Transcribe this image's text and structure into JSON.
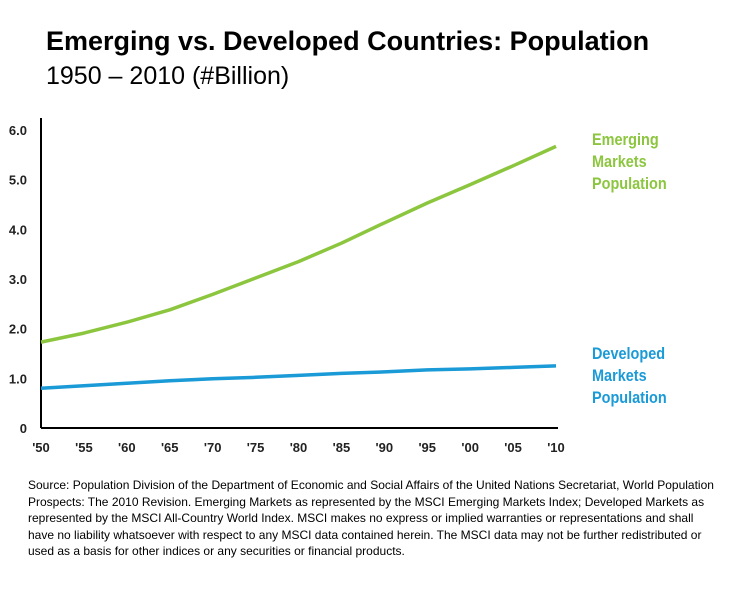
{
  "title": "Emerging vs. Developed Countries: Population",
  "subtitle": "1950 – 2010 (#Billion)",
  "source_text": "Source: Population Division of the Department of Economic and Social Affairs of the United Nations Secretariat, World Population Prospects: The 2010 Revision. Emerging Markets as represented by the MSCI Emerging Markets Index; Developed Markets as represented by the MSCI All-Country World Index. MSCI makes no express or implied warranties or representations and shall have no liability whatsoever with respect to any MSCI data contained herein. The MSCI data may not be further redistributed or used as a basis for other indices or any securities or financial products.",
  "colors": {
    "emerging": "#8cc63f",
    "developed": "#1a9ad6",
    "axis": "#000000"
  },
  "chart_data": {
    "type": "line",
    "title": "Emerging vs. Developed Countries: Population",
    "subtitle": "1950 – 2010 (#Billion)",
    "categories": [
      "'50",
      "'55",
      "'60",
      "'65",
      "'70",
      "'75",
      "'80",
      "'85",
      "'90",
      "'95",
      "'00",
      "'05",
      "'10"
    ],
    "y_ticks": [
      "0",
      "1.0",
      "2.0",
      "3.0",
      "4.0",
      "5.0",
      "6.0"
    ],
    "ylim": [
      0,
      6.0
    ],
    "grid": false,
    "series": [
      {
        "name": "Emerging Markets Population",
        "name_lines": [
          "Emerging",
          "Markets",
          "Population"
        ],
        "values": [
          1.73,
          1.91,
          2.13,
          2.38,
          2.69,
          3.02,
          3.35,
          3.72,
          4.13,
          4.53,
          4.9,
          5.28,
          5.67
        ]
      },
      {
        "name": "Developed Markets Population",
        "name_lines": [
          "Developed",
          "Markets",
          "Population"
        ],
        "values": [
          0.8,
          0.85,
          0.9,
          0.95,
          0.99,
          1.02,
          1.06,
          1.1,
          1.13,
          1.17,
          1.19,
          1.22,
          1.25
        ]
      }
    ]
  }
}
